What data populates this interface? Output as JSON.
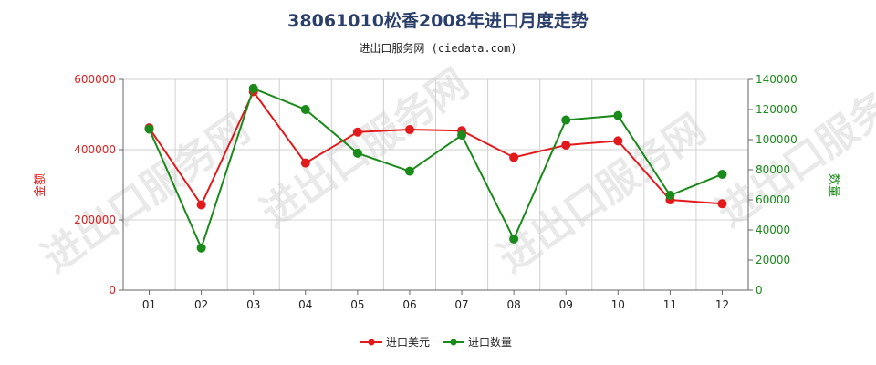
{
  "title": "38061010松香2008年进口月度走势",
  "subtitle": "进出口服务网 (ciedata.com)",
  "colors": {
    "usd": "#e31a1c",
    "qty": "#1a8a1a",
    "grid": "#d0d0d0"
  },
  "chart_data": {
    "type": "line",
    "title": "38061010松香2008年进口月度走势",
    "categories": [
      "01",
      "02",
      "03",
      "04",
      "05",
      "06",
      "07",
      "08",
      "09",
      "10",
      "11",
      "12"
    ],
    "series": [
      {
        "name": "进口美元",
        "axis": "left",
        "values": [
          462000,
          243000,
          565000,
          362000,
          450000,
          457000,
          454000,
          378000,
          413000,
          425000,
          257000,
          246000
        ]
      },
      {
        "name": "进口数量",
        "axis": "right",
        "values": [
          107000,
          28000,
          134000,
          120000,
          91000,
          79000,
          103000,
          34000,
          113000,
          116000,
          63000,
          77000
        ]
      }
    ],
    "ylabel_left": "金额",
    "ylabel_right": "数量",
    "ylim_left": [
      0,
      600000
    ],
    "ylim_right": [
      0,
      140000
    ],
    "yticks_left": [
      "0",
      "200000",
      "400000",
      "600000"
    ],
    "yticks_right": [
      "0",
      "20000",
      "40000",
      "60000",
      "80000",
      "100000",
      "120000",
      "140000"
    ],
    "grid": true,
    "legend_position": "bottom"
  }
}
